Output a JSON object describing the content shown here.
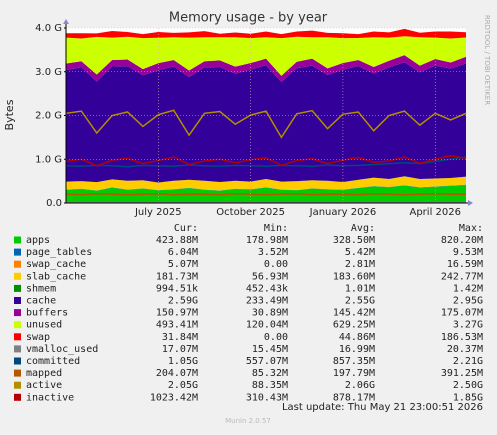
{
  "chart_data": {
    "type": "area",
    "title": "Memory usage - by year",
    "ylabel": "Bytes",
    "side_label": "RRDTOOL / TOBI OETIKER",
    "categories": [
      null,
      null,
      null,
      null,
      null,
      null,
      "July 2025",
      null,
      null,
      null,
      null,
      null,
      "October 2025",
      null,
      null,
      null,
      null,
      null,
      "January 2026",
      null,
      null,
      null,
      null,
      null,
      "April 2026",
      null,
      null
    ],
    "ylim": [
      0,
      4
    ],
    "yticks": [
      {
        "value": 0,
        "label": "0.0"
      },
      {
        "value": 1,
        "label": "1.0 G"
      },
      {
        "value": 2,
        "label": "2.0 G"
      },
      {
        "value": 3,
        "label": "3.0 G"
      },
      {
        "value": 4,
        "label": "4.0 G"
      }
    ],
    "grid": true,
    "legend_columns": [
      "Cur:",
      "Min:",
      "Avg:",
      "Max:"
    ],
    "series": [
      {
        "name": "apps",
        "color": "#00cc00",
        "draw": "area",
        "stats": [
          "423.88M",
          "178.98M",
          "328.50M",
          "820.20M"
        ],
        "values": [
          0.3,
          0.32,
          0.28,
          0.35,
          0.3,
          0.33,
          0.29,
          0.31,
          0.34,
          0.3,
          0.28,
          0.32,
          0.31,
          0.35,
          0.3,
          0.29,
          0.33,
          0.31,
          0.3,
          0.34,
          0.38,
          0.36,
          0.4,
          0.35,
          0.37,
          0.39,
          0.41
        ]
      },
      {
        "name": "page_tables",
        "color": "#0066b3",
        "draw": "area",
        "stats": [
          "6.04M",
          "3.52M",
          "5.42M",
          "9.53M"
        ],
        "values": [
          0.005,
          0.005,
          0.005,
          0.006,
          0.005,
          0.005,
          0.005,
          0.005,
          0.006,
          0.005,
          0.005,
          0.005,
          0.005,
          0.006,
          0.005,
          0.005,
          0.005,
          0.005,
          0.005,
          0.006,
          0.006,
          0.006,
          0.006,
          0.006,
          0.006,
          0.006,
          0.006
        ]
      },
      {
        "name": "swap_cache",
        "color": "#ff8000",
        "draw": "area",
        "stats": [
          "5.07M",
          "0.00",
          "2.81M",
          "16.59M"
        ],
        "values": [
          0.003,
          0.003,
          0.002,
          0.003,
          0.003,
          0.003,
          0.002,
          0.003,
          0.003,
          0.003,
          0.003,
          0.002,
          0.003,
          0.003,
          0.003,
          0.003,
          0.003,
          0.002,
          0.003,
          0.003,
          0.003,
          0.003,
          0.003,
          0.003,
          0.003,
          0.004,
          0.005
        ]
      },
      {
        "name": "slab_cache",
        "color": "#ffcc00",
        "draw": "area",
        "stats": [
          "181.73M",
          "56.93M",
          "183.60M",
          "242.77M"
        ],
        "values": [
          0.18,
          0.17,
          0.19,
          0.18,
          0.2,
          0.18,
          0.17,
          0.19,
          0.18,
          0.2,
          0.19,
          0.18,
          0.17,
          0.19,
          0.18,
          0.2,
          0.18,
          0.19,
          0.17,
          0.18,
          0.19,
          0.18,
          0.2,
          0.19,
          0.18,
          0.17,
          0.18
        ]
      },
      {
        "name": "shmem",
        "color": "#008f00",
        "draw": "area",
        "stats": [
          "994.51k",
          "452.43k",
          "1.01M",
          "1.42M"
        ],
        "values": [
          0.001,
          0.001,
          0.001,
          0.001,
          0.001,
          0.001,
          0.001,
          0.001,
          0.001,
          0.001,
          0.001,
          0.001,
          0.001,
          0.001,
          0.001,
          0.001,
          0.001,
          0.001,
          0.001,
          0.001,
          0.001,
          0.001,
          0.001,
          0.001,
          0.001,
          0.001,
          0.001
        ]
      },
      {
        "name": "cache",
        "color": "#330099",
        "draw": "area",
        "stats": [
          "2.59G",
          "233.49M",
          "2.55G",
          "2.95G"
        ],
        "values": [
          2.55,
          2.6,
          2.3,
          2.58,
          2.62,
          2.4,
          2.57,
          2.61,
          2.35,
          2.59,
          2.63,
          2.45,
          2.56,
          2.6,
          2.28,
          2.58,
          2.62,
          2.42,
          2.57,
          2.6,
          2.38,
          2.55,
          2.61,
          2.44,
          2.58,
          2.5,
          2.59
        ]
      },
      {
        "name": "buffers",
        "color": "#990099",
        "draw": "area",
        "stats": [
          "150.97M",
          "30.89M",
          "145.42M",
          "175.07M"
        ],
        "values": [
          0.15,
          0.14,
          0.16,
          0.15,
          0.15,
          0.14,
          0.16,
          0.15,
          0.15,
          0.14,
          0.15,
          0.16,
          0.15,
          0.15,
          0.14,
          0.15,
          0.16,
          0.15,
          0.15,
          0.14,
          0.15,
          0.15,
          0.16,
          0.15,
          0.15,
          0.14,
          0.15
        ]
      },
      {
        "name": "unused",
        "color": "#ccff00",
        "draw": "area",
        "stats": [
          "493.41M",
          "120.04M",
          "629.25M",
          "3.27G"
        ],
        "values": [
          0.59,
          0.52,
          0.86,
          0.51,
          0.52,
          0.71,
          0.58,
          0.52,
          0.75,
          0.55,
          0.53,
          0.67,
          0.57,
          0.49,
          0.86,
          0.57,
          0.49,
          0.71,
          0.57,
          0.5,
          0.68,
          0.53,
          0.43,
          0.65,
          0.49,
          0.55,
          0.44
        ]
      },
      {
        "name": "swap",
        "color": "#ff0000",
        "draw": "area",
        "stats": [
          "31.84M",
          "0.00",
          "44.86M",
          "186.53M"
        ],
        "values": [
          0.1,
          0.12,
          0.08,
          0.15,
          0.11,
          0.09,
          0.13,
          0.1,
          0.12,
          0.14,
          0.08,
          0.11,
          0.1,
          0.13,
          0.09,
          0.12,
          0.15,
          0.1,
          0.11,
          0.09,
          0.13,
          0.12,
          0.17,
          0.1,
          0.14,
          0.16,
          0.12
        ]
      },
      {
        "name": "vmalloc_used",
        "color": "#808080",
        "draw": "line",
        "stats": [
          "17.07M",
          "15.45M",
          "16.99M",
          "20.37M"
        ],
        "values": [
          0.017,
          0.017,
          0.017,
          0.017,
          0.017,
          0.017,
          0.017,
          0.017,
          0.017,
          0.017,
          0.017,
          0.017,
          0.017,
          0.017,
          0.017,
          0.017,
          0.017,
          0.017,
          0.017,
          0.017,
          0.017,
          0.017,
          0.017,
          0.017,
          0.017,
          0.017,
          0.017
        ]
      },
      {
        "name": "committed",
        "color": "#00487d",
        "draw": "line",
        "stats": [
          "1.05G",
          "557.07M",
          "857.35M",
          "2.21G"
        ],
        "values": [
          0.85,
          0.84,
          0.86,
          0.85,
          0.83,
          0.86,
          0.85,
          0.84,
          0.87,
          0.85,
          0.84,
          0.86,
          0.85,
          0.84,
          0.86,
          0.85,
          0.84,
          0.87,
          0.85,
          0.86,
          0.88,
          0.9,
          0.92,
          0.9,
          0.95,
          1.0,
          1.05
        ]
      },
      {
        "name": "mapped",
        "color": "#b35a00",
        "draw": "line",
        "stats": [
          "204.07M",
          "85.32M",
          "197.79M",
          "391.25M"
        ],
        "values": [
          0.2,
          0.19,
          0.21,
          0.2,
          0.19,
          0.2,
          0.21,
          0.19,
          0.2,
          0.2,
          0.19,
          0.21,
          0.2,
          0.19,
          0.2,
          0.21,
          0.19,
          0.2,
          0.2,
          0.19,
          0.21,
          0.2,
          0.19,
          0.2,
          0.21,
          0.2,
          0.2
        ]
      },
      {
        "name": "active",
        "color": "#b38f00",
        "draw": "line",
        "stats": [
          "2.05G",
          "88.35M",
          "2.06G",
          "2.50G"
        ],
        "values": [
          2.05,
          2.1,
          1.6,
          2.0,
          2.08,
          1.75,
          2.02,
          2.12,
          1.55,
          2.05,
          2.09,
          1.8,
          2.01,
          2.1,
          1.5,
          2.04,
          2.11,
          1.7,
          2.03,
          2.08,
          1.65,
          2.0,
          2.1,
          1.78,
          2.05,
          1.9,
          2.05
        ]
      },
      {
        "name": "inactive",
        "color": "#b30000",
        "draw": "line",
        "stats": [
          "1023.42M",
          "310.43M",
          "878.17M",
          "1.85G"
        ],
        "values": [
          0.95,
          1.0,
          0.85,
          0.98,
          1.02,
          0.9,
          0.97,
          1.05,
          0.88,
          0.96,
          1.0,
          0.92,
          0.99,
          1.03,
          0.86,
          0.97,
          1.01,
          0.9,
          0.98,
          1.04,
          0.93,
          0.96,
          1.05,
          0.91,
          1.0,
          1.08,
          1.02
        ]
      }
    ],
    "last_update": "Last update: Thu May 21 23:00:51 2026",
    "footer": "Munin 2.0.57"
  }
}
